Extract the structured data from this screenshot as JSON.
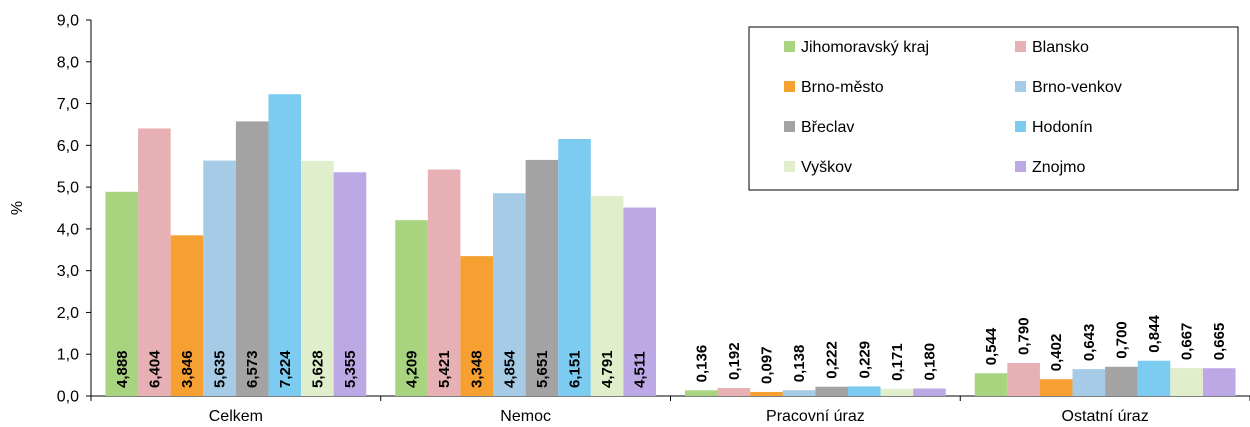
{
  "chart_data": {
    "type": "bar",
    "ylabel": "%",
    "ylim": [
      0,
      9
    ],
    "y_ticks": [
      "0,0",
      "1,0",
      "2,0",
      "3,0",
      "4,0",
      "5,0",
      "6,0",
      "7,0",
      "8,0",
      "9,0"
    ],
    "categories": [
      "Celkem",
      "Nemoc",
      "Pracovní úraz",
      "Ostatní úraz"
    ],
    "grid": false,
    "legend_position": "top-right",
    "series": [
      {
        "name": "Jihomoravský kraj",
        "color": "#a9d47f",
        "values": [
          4.888,
          4.209,
          0.136,
          0.544
        ],
        "labels": [
          "4,888",
          "4,209",
          "0,136",
          "0,544"
        ]
      },
      {
        "name": "Blansko",
        "color": "#e6b0b4",
        "values": [
          6.404,
          5.421,
          0.192,
          0.79
        ],
        "labels": [
          "6,404",
          "5,421",
          "0,192",
          "0,790"
        ]
      },
      {
        "name": "Brno-město",
        "color": "#f5a030",
        "values": [
          3.846,
          3.348,
          0.097,
          0.402
        ],
        "labels": [
          "3,846",
          "3,348",
          "0,097",
          "0,402"
        ]
      },
      {
        "name": "Brno-venkov",
        "color": "#a6cbe6",
        "values": [
          5.635,
          4.854,
          0.138,
          0.643
        ],
        "labels": [
          "5,635",
          "4,854",
          "0,138",
          "0,643"
        ]
      },
      {
        "name": "Břeclav",
        "color": "#a3a3a3",
        "values": [
          6.573,
          5.651,
          0.222,
          0.7
        ],
        "labels": [
          "6,573",
          "5,651",
          "0,222",
          "0,700"
        ]
      },
      {
        "name": "Hodonín",
        "color": "#7ccbf0",
        "values": [
          7.224,
          6.151,
          0.229,
          0.844
        ],
        "labels": [
          "7,224",
          "6,151",
          "0,229",
          "0,844"
        ]
      },
      {
        "name": "Vyškov",
        "color": "#e1eecb",
        "values": [
          5.628,
          4.791,
          0.171,
          0.667
        ],
        "labels": [
          "5,628",
          "4,791",
          "0,171",
          "0,667"
        ]
      },
      {
        "name": "Znojmo",
        "color": "#bca8e4",
        "values": [
          5.355,
          4.511,
          0.18,
          0.665
        ],
        "labels": [
          "5,355",
          "4,511",
          "0,180",
          "0,665"
        ]
      }
    ]
  }
}
